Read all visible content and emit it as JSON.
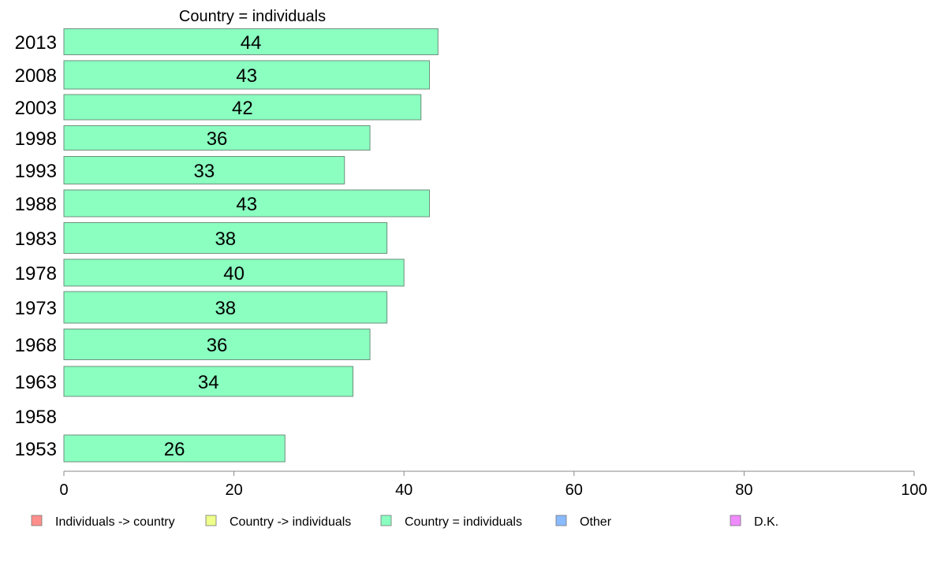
{
  "chart_data": {
    "type": "bar",
    "orientation": "horizontal",
    "title": "Country = individuals",
    "categories": [
      "2013",
      "2008",
      "2003",
      "1998",
      "1993",
      "1988",
      "1983",
      "1978",
      "1973",
      "1968",
      "1963",
      "1958",
      "1953"
    ],
    "values": [
      44,
      43,
      42,
      36,
      33,
      43,
      38,
      40,
      38,
      36,
      34,
      null,
      26
    ],
    "value_labels": [
      "44",
      "43",
      "42",
      "36",
      "33",
      "43",
      "38",
      "40",
      "38",
      "36",
      "34",
      "",
      "26"
    ],
    "bar_color": "#8affc0",
    "xlim": [
      0,
      100
    ],
    "xticks": [
      "0",
      "20",
      "40",
      "60",
      "80",
      "100"
    ],
    "xlabel": "",
    "ylabel": "",
    "grid": false,
    "legend_position": "bottom",
    "legend": [
      {
        "label": "Individuals -> country",
        "color": "#ff8f8a"
      },
      {
        "label": "Country -> individuals",
        "color": "#eeff8a"
      },
      {
        "label": "Country = individuals",
        "color": "#8affc0"
      },
      {
        "label": "Other",
        "color": "#8abaff"
      },
      {
        "label": "D.K.",
        "color": "#f08aff"
      }
    ]
  }
}
